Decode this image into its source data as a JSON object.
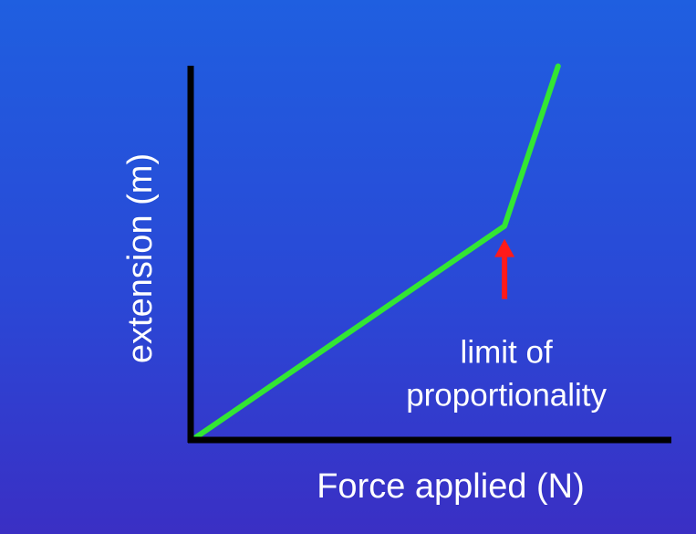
{
  "chart_data": {
    "type": "line",
    "title": "",
    "xlabel": "Force applied (N)",
    "ylabel": "extension (m)",
    "grid": false,
    "legend": "none",
    "xlim": [
      0,
      10
    ],
    "ylim": [
      0,
      10
    ],
    "series": [
      {
        "x": [
          0,
          6.4,
          7.5
        ],
        "y": [
          0,
          6.0,
          10.5
        ]
      }
    ],
    "annotations": [
      {
        "lines": [
          "limit of",
          "proportionality"
        ],
        "target": {
          "x": 6.4,
          "y": 6.0
        }
      }
    ]
  },
  "colors": {
    "background_top": "#1f5fe0",
    "background_bottom": "#3a2fc4",
    "axes": "#000000",
    "line": "#33e633",
    "arrow": "#ff1a1a",
    "text": "#ffffff"
  }
}
